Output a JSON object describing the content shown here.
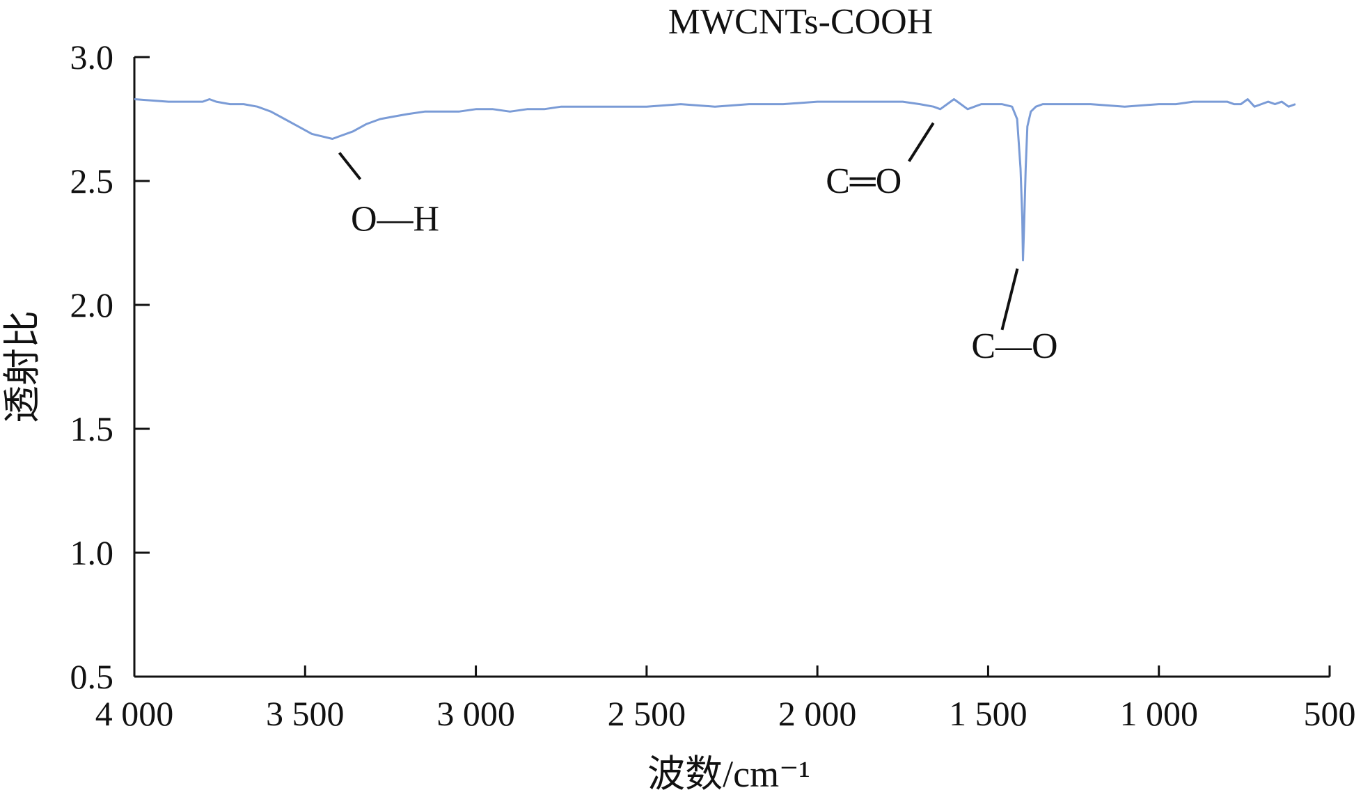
{
  "chart_data": {
    "type": "line",
    "title": "MWCNTs-COOH",
    "xlabel": "波数/cm⁻¹",
    "ylabel": "透射比",
    "xlim": [
      4000,
      500
    ],
    "ylim": [
      0.5,
      3.0
    ],
    "x_reversed": true,
    "xticks": [
      4000,
      3500,
      3000,
      2500,
      2000,
      1500,
      1000,
      500
    ],
    "xtick_labels": [
      "4 000",
      "3 500",
      "3 000",
      "2 500",
      "2 000",
      "1 500",
      "1 000",
      "500"
    ],
    "yticks": [
      0.5,
      1.0,
      1.5,
      2.0,
      2.5,
      3.0
    ],
    "ytick_labels": [
      "0.5",
      "1.0",
      "1.5",
      "2.0",
      "2.5",
      "3.0"
    ],
    "grid": false,
    "line_color": "#7a9bd6",
    "series": [
      {
        "x": [
          4000,
          3900,
          3800,
          3780,
          3760,
          3720,
          3680,
          3640,
          3600,
          3560,
          3520,
          3480,
          3450,
          3420,
          3400,
          3360,
          3320,
          3280,
          3240,
          3200,
          3150,
          3100,
          3050,
          3000,
          2950,
          2900,
          2850,
          2800,
          2750,
          2700,
          2600,
          2500,
          2400,
          2300,
          2200,
          2100,
          2000,
          1900,
          1800,
          1750,
          1700,
          1660,
          1640,
          1620,
          1600,
          1580,
          1560,
          1540,
          1520,
          1500,
          1460,
          1430,
          1415,
          1405,
          1400,
          1398,
          1395,
          1390,
          1385,
          1375,
          1360,
          1340,
          1300,
          1200,
          1100,
          1000,
          950,
          900,
          850,
          800,
          780,
          760,
          740,
          720,
          700,
          680,
          660,
          640,
          620,
          600
        ],
        "y": [
          2.83,
          2.82,
          2.82,
          2.83,
          2.82,
          2.81,
          2.81,
          2.8,
          2.78,
          2.75,
          2.72,
          2.69,
          2.68,
          2.67,
          2.68,
          2.7,
          2.73,
          2.75,
          2.76,
          2.77,
          2.78,
          2.78,
          2.78,
          2.79,
          2.79,
          2.78,
          2.79,
          2.79,
          2.8,
          2.8,
          2.8,
          2.8,
          2.81,
          2.8,
          2.81,
          2.81,
          2.82,
          2.82,
          2.82,
          2.82,
          2.81,
          2.8,
          2.79,
          2.81,
          2.83,
          2.81,
          2.79,
          2.8,
          2.81,
          2.81,
          2.81,
          2.8,
          2.75,
          2.55,
          2.35,
          2.18,
          2.3,
          2.55,
          2.72,
          2.78,
          2.8,
          2.81,
          2.81,
          2.81,
          2.8,
          2.81,
          2.81,
          2.82,
          2.82,
          2.82,
          2.81,
          2.81,
          2.83,
          2.8,
          2.81,
          2.82,
          2.81,
          2.82,
          2.8,
          2.81
        ]
      }
    ],
    "annotations": [
      {
        "text": "O—H",
        "target": [
          3420,
          2.67
        ]
      },
      {
        "text": "C═O",
        "target": [
          1640,
          2.79
        ]
      },
      {
        "text": "C—O",
        "target": [
          1398,
          2.18
        ]
      }
    ]
  }
}
